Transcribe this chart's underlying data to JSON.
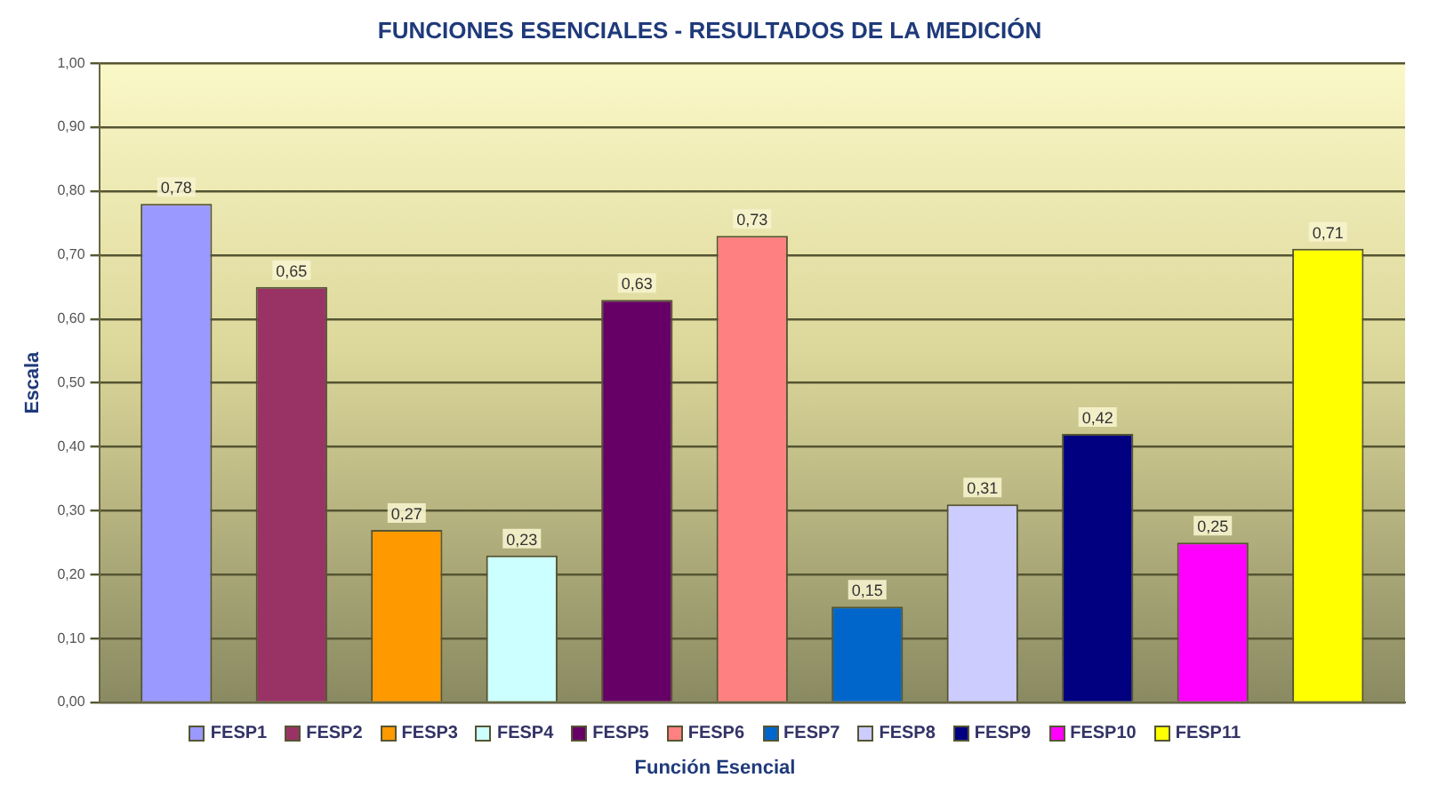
{
  "chart_data": {
    "type": "bar",
    "title": "FUNCIONES ESENCIALES - RESULTADOS DE LA MEDICIÓN",
    "xlabel": "Función Esencial",
    "ylabel": "Escala",
    "categories": [
      null
    ],
    "series": [
      {
        "name": "FESP1",
        "color": "#9999ff",
        "values": [
          0.78
        ],
        "value_labels": [
          "0,78"
        ]
      },
      {
        "name": "FESP2",
        "color": "#993366",
        "values": [
          0.65
        ],
        "value_labels": [
          "0,65"
        ]
      },
      {
        "name": "FESP3",
        "color": "#ff9900",
        "values": [
          0.27
        ],
        "value_labels": [
          "0,27"
        ]
      },
      {
        "name": "FESP4",
        "color": "#ccffff",
        "values": [
          0.23
        ],
        "value_labels": [
          "0,23"
        ]
      },
      {
        "name": "FESP5",
        "color": "#660066",
        "values": [
          0.63
        ],
        "value_labels": [
          "0,63"
        ]
      },
      {
        "name": "FESP6",
        "color": "#ff8080",
        "values": [
          0.73
        ],
        "value_labels": [
          "0,73"
        ]
      },
      {
        "name": "FESP7",
        "color": "#0066cc",
        "values": [
          0.15
        ],
        "value_labels": [
          "0,15"
        ]
      },
      {
        "name": "FESP8",
        "color": "#ccccff",
        "values": [
          0.31
        ],
        "value_labels": [
          "0,31"
        ]
      },
      {
        "name": "FESP9",
        "color": "#000080",
        "values": [
          0.42
        ],
        "value_labels": [
          "0,42"
        ]
      },
      {
        "name": "FESP10",
        "color": "#ff00ff",
        "values": [
          0.25
        ],
        "value_labels": [
          "0,25"
        ]
      },
      {
        "name": "FESP11",
        "color": "#ffff00",
        "values": [
          0.71
        ],
        "value_labels": [
          "0,71"
        ]
      }
    ],
    "ylim": [
      0,
      1
    ],
    "yticks": [
      {
        "value": 0,
        "label": "0,00"
      },
      {
        "value": 0.1,
        "label": "0,10"
      },
      {
        "value": 0.2,
        "label": "0,20"
      },
      {
        "value": 0.3,
        "label": "0,30"
      },
      {
        "value": 0.4,
        "label": "0,40"
      },
      {
        "value": 0.5,
        "label": "0,50"
      },
      {
        "value": 0.6,
        "label": "0,60"
      },
      {
        "value": 0.7,
        "label": "0,70"
      },
      {
        "value": 0.8,
        "label": "0,80"
      },
      {
        "value": 0.9,
        "label": "0,90"
      },
      {
        "value": 1,
        "label": "1,00"
      }
    ],
    "grid": "y",
    "legend": "bottom"
  }
}
